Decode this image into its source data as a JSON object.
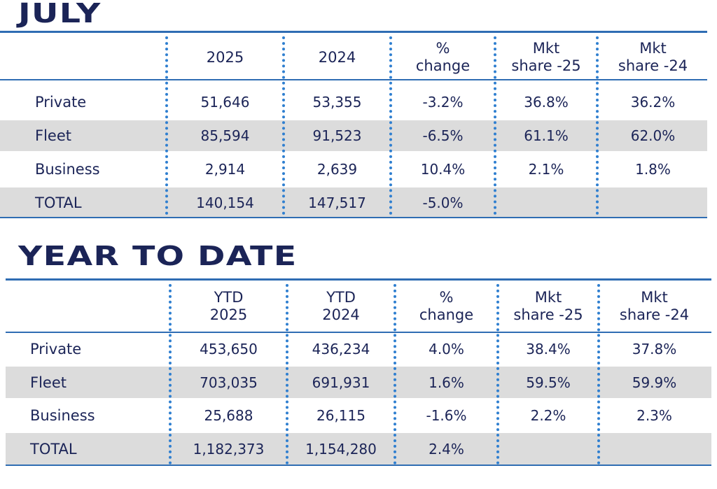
{
  "july": {
    "title": "JULY",
    "headers": [
      "2025",
      "2024",
      "% change",
      "Mkt share -25",
      "Mkt share -24"
    ],
    "header_lines": [
      [
        "2025"
      ],
      [
        "2024"
      ],
      [
        "%",
        "change"
      ],
      [
        "Mkt",
        "share -25"
      ],
      [
        "Mkt",
        "share -24"
      ]
    ],
    "rows": [
      {
        "label": "Private",
        "values": [
          "51,646",
          "53,355",
          "-3.2%",
          "36.8%",
          "36.2%"
        ]
      },
      {
        "label": "Fleet",
        "values": [
          "85,594",
          "91,523",
          "-6.5%",
          "61.1%",
          "62.0%"
        ]
      },
      {
        "label": "Business",
        "values": [
          "2,914",
          "2,639",
          "10.4%",
          "2.1%",
          "1.8%"
        ]
      },
      {
        "label": "TOTAL",
        "values": [
          "140,154",
          "147,517",
          "-5.0%",
          "",
          ""
        ]
      }
    ]
  },
  "ytd": {
    "title": "YEAR TO DATE",
    "headers": [
      "YTD 2025",
      "YTD 2024",
      "% change",
      "Mkt share -25",
      "Mkt share -24"
    ],
    "header_lines": [
      [
        "YTD",
        "2025"
      ],
      [
        "YTD",
        "2024"
      ],
      [
        "%",
        "change"
      ],
      [
        "Mkt",
        "share -25"
      ],
      [
        "Mkt",
        "share -24"
      ]
    ],
    "rows": [
      {
        "label": "Private",
        "values": [
          "453,650",
          "436,234",
          "4.0%",
          "38.4%",
          "37.8%"
        ]
      },
      {
        "label": "Fleet",
        "values": [
          "703,035",
          "691,931",
          "1.6%",
          "59.5%",
          "59.9%"
        ]
      },
      {
        "label": "Business",
        "values": [
          "25,688",
          "26,115",
          "-1.6%",
          "2.2%",
          "2.3%"
        ]
      },
      {
        "label": "TOTAL",
        "values": [
          "1,182,373",
          "1,154,280",
          "2.4%",
          "",
          ""
        ]
      }
    ]
  },
  "colors": {
    "rule": "#2f6db3",
    "dots": "#2f7fd0",
    "shade": "#dcdcdc",
    "text": "#1b2457"
  }
}
